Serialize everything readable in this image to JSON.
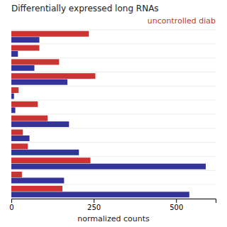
{
  "chart_data": {
    "type": "bar",
    "orientation": "horizontal",
    "title": "Differentially expressed long RNAs",
    "x_label": "normalized counts",
    "categories": [
      null,
      null,
      null,
      null,
      null,
      null,
      null,
      null,
      null,
      null,
      null,
      null
    ],
    "series": [
      {
        "name": "uncontrolled diab",
        "color": "#cc3333",
        "values": [
          235,
          85,
          145,
          255,
          22,
          80,
          110,
          35,
          50,
          240,
          32,
          155
        ]
      },
      {
        "color": "#333399",
        "values": [
          85,
          20,
          70,
          170,
          8,
          12,
          175,
          55,
          205,
          590,
          160,
          540
        ]
      }
    ],
    "xlim": [
      0,
      620
    ],
    "xticks": [
      0,
      250,
      500
    ],
    "tick_labels": "x",
    "legend": "upper right"
  }
}
